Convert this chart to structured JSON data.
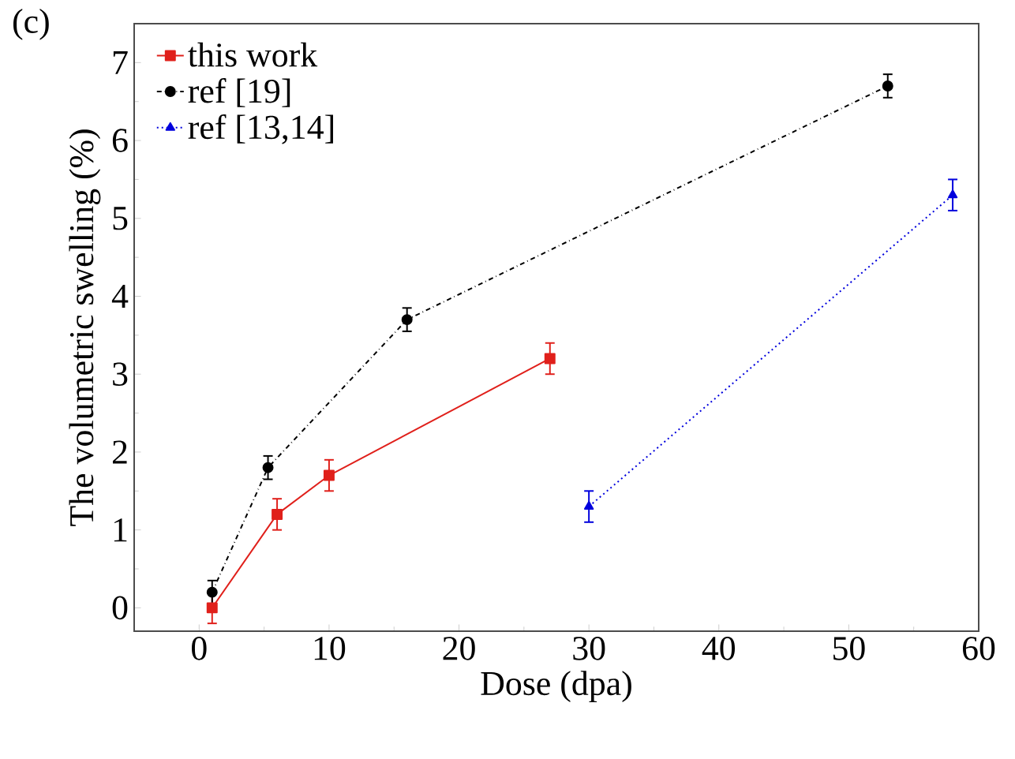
{
  "chart_data": {
    "type": "line",
    "xlabel": "Dose (dpa)",
    "ylabel": "The volumetric swelling (%)",
    "annotations": [
      "(c)"
    ],
    "xlim": [
      -5,
      60
    ],
    "ylim": [
      -0.3,
      7.5
    ],
    "xticks": [
      0,
      10,
      20,
      30,
      40,
      50,
      60
    ],
    "yticks": [
      0,
      1,
      2,
      3,
      4,
      5,
      6,
      7
    ],
    "grid": false,
    "legend": "top left",
    "series": [
      {
        "name": "this work",
        "color": "#e0201b",
        "marker": "square",
        "line_style": "solid",
        "x": [
          1,
          6,
          10,
          27
        ],
        "values": [
          0,
          1.2,
          1.7,
          3.2
        ],
        "errors": [
          0.2,
          0.2,
          0.2,
          0.2
        ]
      },
      {
        "name": "ref [19]",
        "color": "#000000",
        "marker": "circle",
        "line_style": "dashdotted",
        "x": [
          1,
          5.3,
          16,
          53
        ],
        "values": [
          0.2,
          1.8,
          3.7,
          6.7
        ],
        "errors": [
          0.15,
          0.15,
          0.15,
          0.15
        ]
      },
      {
        "name": "ref [13,14]",
        "color": "#0000dd",
        "marker": "triangle",
        "line_style": "dotted",
        "x": [
          30,
          58
        ],
        "values": [
          1.3,
          5.3
        ],
        "errors": [
          0.2,
          0.2
        ]
      }
    ]
  }
}
